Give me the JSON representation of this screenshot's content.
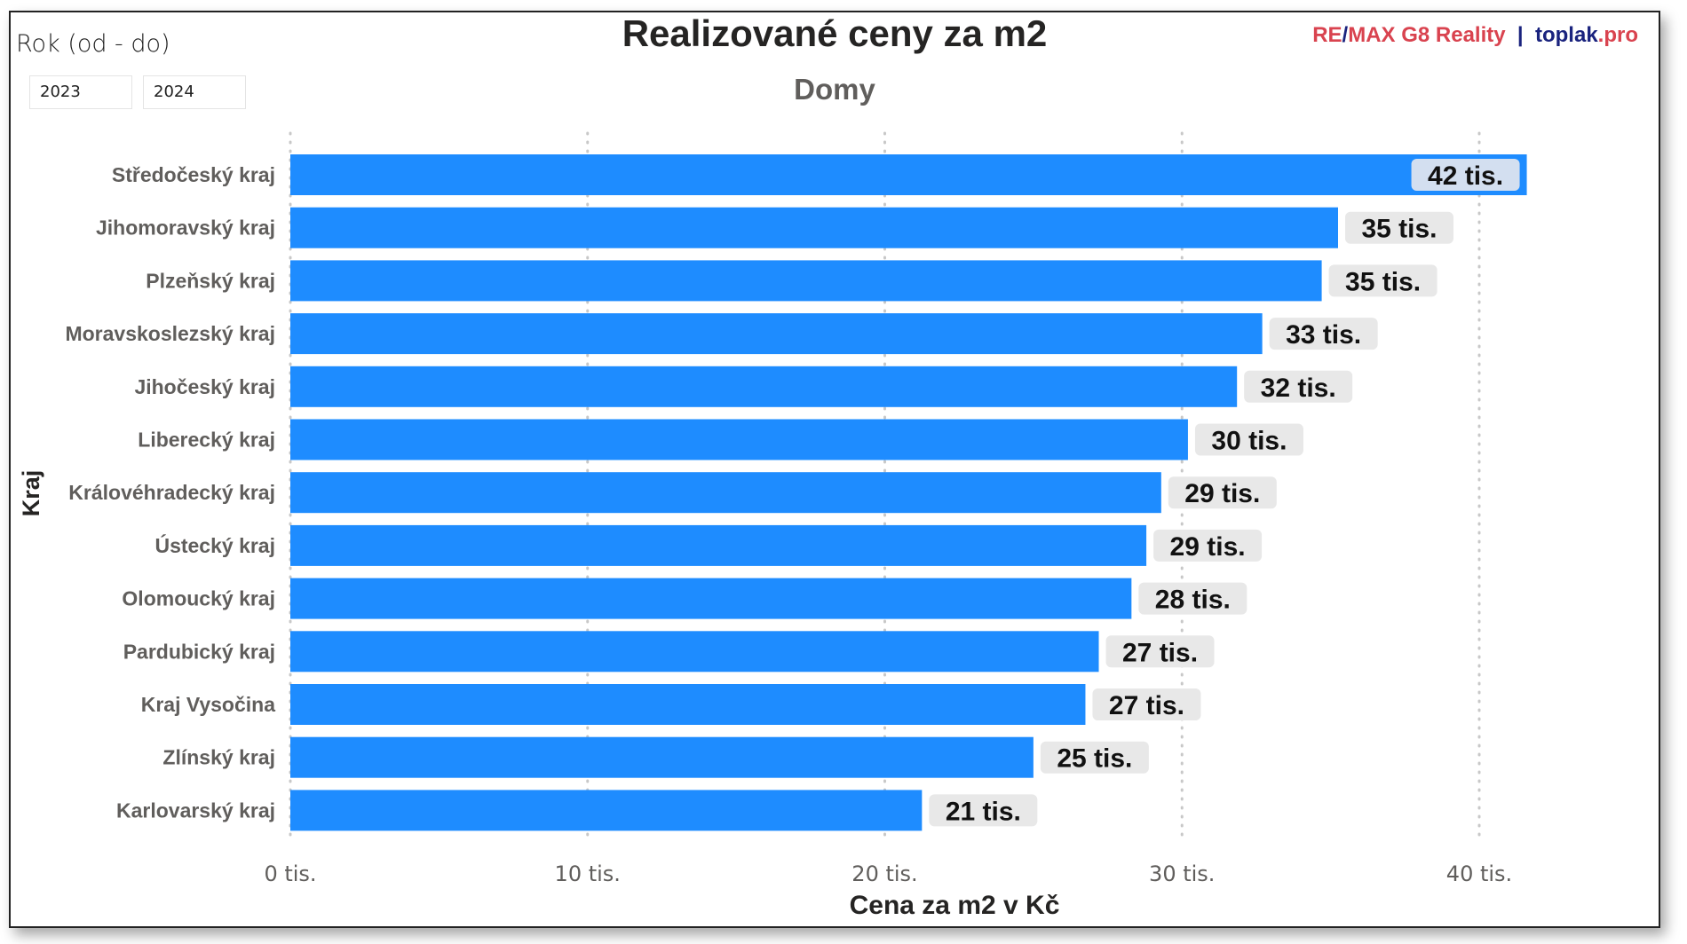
{
  "filter": {
    "label": "Rok (od - do)",
    "from": "2023",
    "to": "2024"
  },
  "brand": {
    "part1": "RE",
    "slash": "/",
    "part2": "MAX G8 Reality",
    "sep": "  |  ",
    "part3": "toplak",
    "part4": ".pro",
    "colors": {
      "red": "#d9434f",
      "navy": "#1a237e"
    }
  },
  "chart_data": {
    "type": "bar",
    "orientation": "horizontal",
    "title": "Realizované ceny za m2",
    "subtitle": "Domy",
    "xlabel": "Cena za m2 v Kč",
    "ylabel": "Kraj",
    "xlim": [
      0,
      40000
    ],
    "xticks": [
      0,
      10000,
      20000,
      30000,
      40000
    ],
    "xtick_labels": [
      "0 tis.",
      "10 tis.",
      "20 tis.",
      "30 tis.",
      "40 tis."
    ],
    "grid": "vertical dotted",
    "bar_color": "#1e8cff",
    "categories": [
      "Středočeský kraj",
      "Jihomoravský kraj",
      "Plzeňský kraj",
      "Moravskoslezský kraj",
      "Jihočeský kraj",
      "Liberecký kraj",
      "Královéhradecký kraj",
      "Ústecký kraj",
      "Olomoucký kraj",
      "Pardubický kraj",
      "Kraj Vysočina",
      "Zlínský kraj",
      "Karlovarský kraj"
    ],
    "values": [
      41600,
      35250,
      34700,
      32700,
      31850,
      30200,
      29300,
      28800,
      28300,
      27200,
      26750,
      25000,
      21250
    ],
    "data_labels": [
      "42 tis.",
      "35 tis.",
      "35 tis.",
      "33 tis.",
      "32 tis.",
      "30 tis.",
      "29 tis.",
      "29 tis.",
      "28 tis.",
      "27 tis.",
      "27 tis.",
      "25 tis.",
      "21 tis."
    ]
  }
}
